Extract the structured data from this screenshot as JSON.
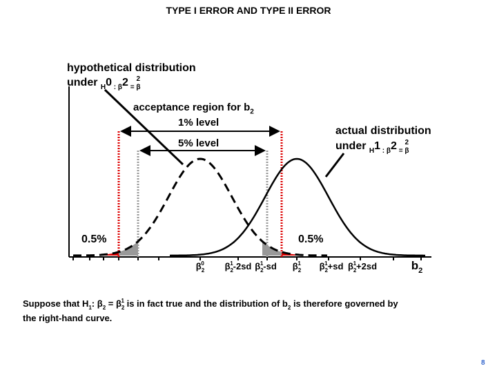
{
  "title": "TYPE I ERROR AND TYPE II ERROR",
  "hypothetical_label": {
    "line1": "hypothetical distribution",
    "line2": [
      "under ",
      "H",
      "0",
      " : β",
      "2",
      " = β",
      "2",
      "0"
    ]
  },
  "acceptance_label": [
    "acceptance region for ",
    "b",
    "2"
  ],
  "level_1": "1% level",
  "level_5": "5% level",
  "actual_label": {
    "line1": "actual distribution",
    "line2": [
      "under ",
      "H",
      "1",
      " : β",
      "2",
      " = β",
      "2",
      "1"
    ]
  },
  "tail_left": "0.5%",
  "tail_right": "0.5%",
  "axis_labels": [
    [
      "β",
      "2",
      "0"
    ],
    [
      "β",
      "2",
      "1",
      "-2sd"
    ],
    [
      "β",
      "2",
      "1",
      "-sd"
    ],
    [
      "β",
      "2",
      "1"
    ],
    [
      "β",
      "2",
      "1",
      "+sd"
    ],
    [
      "β",
      "2",
      "1",
      "+2sd"
    ],
    [
      "b",
      "2"
    ]
  ],
  "caption": [
    "Suppose that H",
    "1",
    ": β",
    "2",
    " = β",
    "2",
    "1",
    " is in fact true and the distribution of b",
    "2",
    " is therefore governed by",
    "the right-hand curve."
  ],
  "page_number": "8"
}
